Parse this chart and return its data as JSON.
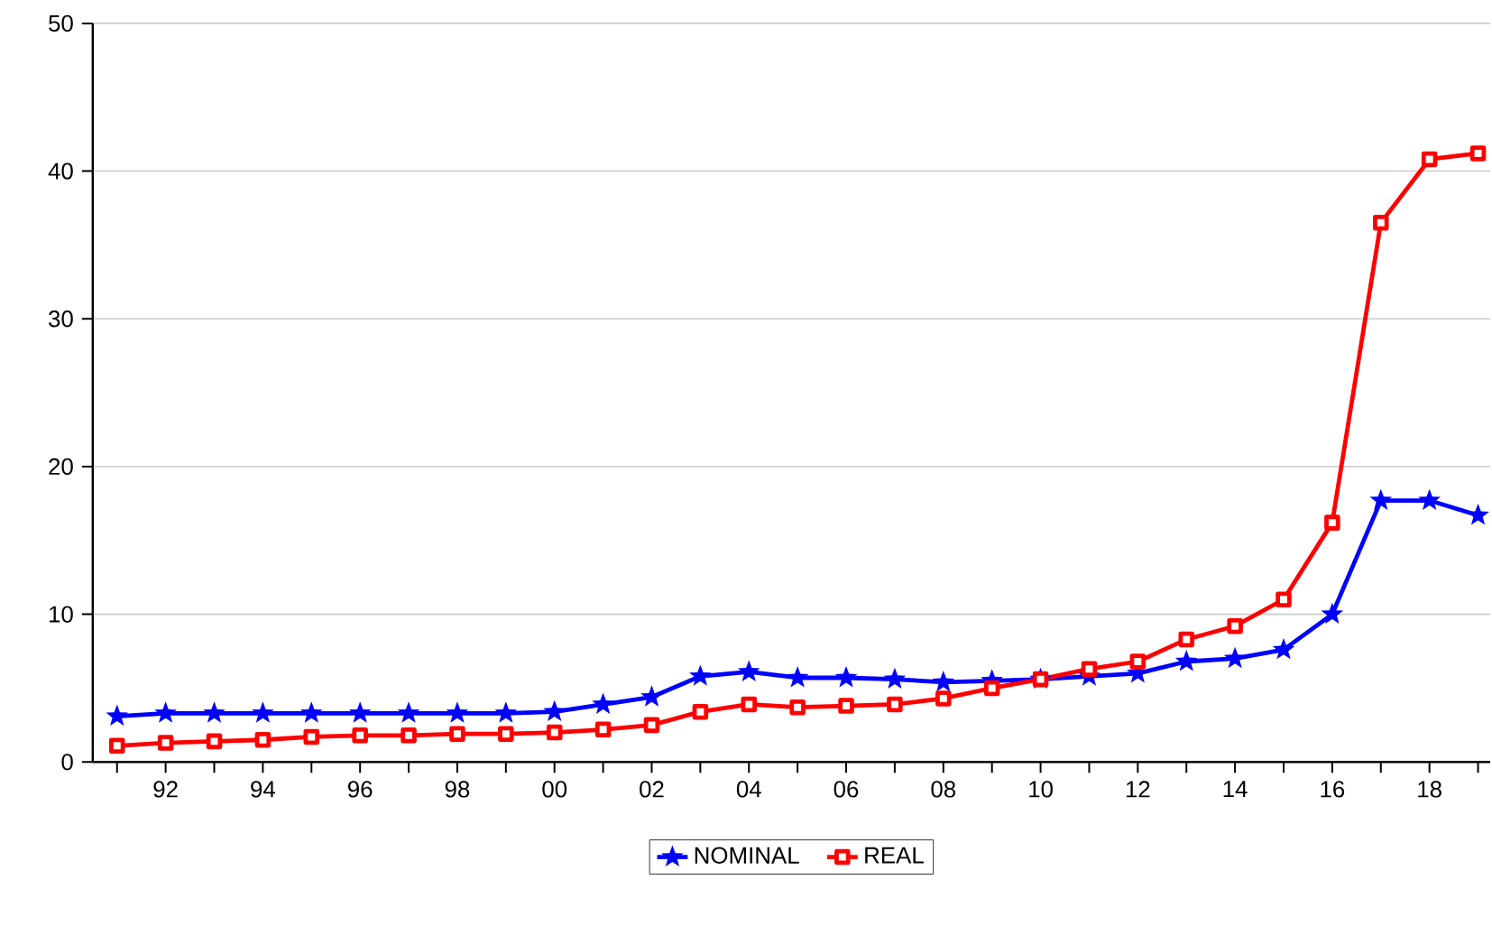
{
  "chart_data": {
    "type": "line",
    "x": [
      1991,
      1992,
      1993,
      1994,
      1995,
      1996,
      1997,
      1998,
      1999,
      2000,
      2001,
      2002,
      2003,
      2004,
      2005,
      2006,
      2007,
      2008,
      2009,
      2010,
      2011,
      2012,
      2013,
      2014,
      2015,
      2016,
      2017,
      2018,
      2019
    ],
    "series": [
      {
        "name": "NOMINAL",
        "color": "#0000ff",
        "marker": "star",
        "values": [
          3.1,
          3.3,
          3.3,
          3.3,
          3.3,
          3.3,
          3.3,
          3.3,
          3.3,
          3.4,
          3.9,
          4.4,
          5.8,
          6.1,
          5.7,
          5.7,
          5.6,
          5.4,
          5.5,
          5.6,
          5.8,
          6.0,
          6.8,
          7.0,
          7.6,
          10.0,
          17.7,
          17.7,
          16.7
        ]
      },
      {
        "name": "REAL",
        "color": "#ff0000",
        "marker": "square",
        "values": [
          1.1,
          1.3,
          1.4,
          1.5,
          1.7,
          1.8,
          1.8,
          1.9,
          1.9,
          2.0,
          2.2,
          2.5,
          3.4,
          3.9,
          3.7,
          3.8,
          3.9,
          4.3,
          5.0,
          5.6,
          6.3,
          6.8,
          8.3,
          9.2,
          11.0,
          16.2,
          36.5,
          40.8,
          41.2
        ]
      }
    ],
    "xlim": [
      1990.5,
      2019.25
    ],
    "xticks": [
      {
        "value": 1991,
        "label": null
      },
      {
        "value": 1992,
        "label": "92"
      },
      {
        "value": 1993,
        "label": null
      },
      {
        "value": 1994,
        "label": "94"
      },
      {
        "value": 1995,
        "label": null
      },
      {
        "value": 1996,
        "label": "96"
      },
      {
        "value": 1997,
        "label": null
      },
      {
        "value": 1998,
        "label": "98"
      },
      {
        "value": 1999,
        "label": null
      },
      {
        "value": 2000,
        "label": "00"
      },
      {
        "value": 2001,
        "label": null
      },
      {
        "value": 2002,
        "label": "02"
      },
      {
        "value": 2003,
        "label": null
      },
      {
        "value": 2004,
        "label": "04"
      },
      {
        "value": 2005,
        "label": null
      },
      {
        "value": 2006,
        "label": "06"
      },
      {
        "value": 2007,
        "label": null
      },
      {
        "value": 2008,
        "label": "08"
      },
      {
        "value": 2009,
        "label": null
      },
      {
        "value": 2010,
        "label": "10"
      },
      {
        "value": 2011,
        "label": null
      },
      {
        "value": 2012,
        "label": "12"
      },
      {
        "value": 2013,
        "label": null
      },
      {
        "value": 2014,
        "label": "14"
      },
      {
        "value": 2015,
        "label": null
      },
      {
        "value": 2016,
        "label": "16"
      },
      {
        "value": 2017,
        "label": null
      },
      {
        "value": 2018,
        "label": "18"
      },
      {
        "value": 2019,
        "label": null
      }
    ],
    "ylim": [
      0,
      50
    ],
    "yticks": [
      0,
      10,
      20,
      30,
      40,
      50
    ],
    "grid": "y",
    "legend": "bottom",
    "line_style": "solid"
  }
}
